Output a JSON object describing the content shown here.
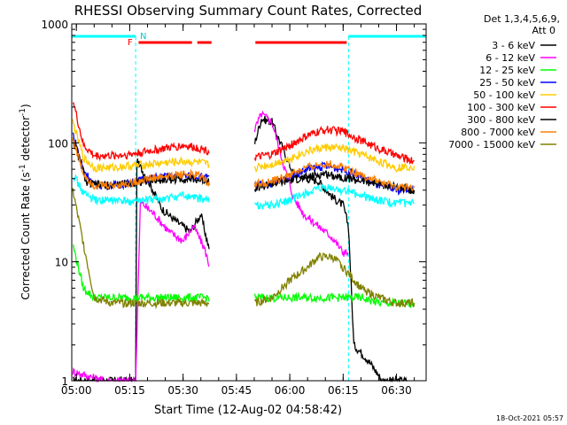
{
  "chart_data": {
    "type": "line",
    "title": "RHESSI Observing Summary Count Rates, Corrected",
    "xlabel": "Start Time (12-Aug-02 04:58:42)",
    "ylabel": "Corrected Count Rate (s",
    "ylabel_sup1": "-1",
    "ylabel_mid": " detector",
    "ylabel_sup2": "-1",
    "ylabel_end": ")",
    "y_scale": "log",
    "ylim": [
      1,
      1000
    ],
    "xlim": [
      "04:58:42",
      "06:38:20"
    ],
    "x_ticks": [
      "05:00",
      "05:15",
      "05:30",
      "05:45",
      "06:00",
      "06:15",
      "06:30"
    ],
    "y_ticks": [
      "1",
      "10",
      "100",
      "1000"
    ],
    "legend_header": [
      "Det 1,3,4,5,6,9,",
      "Att 0"
    ],
    "legend_position": "right",
    "timestamp": "18-Oct-2021 05:57",
    "markers": {
      "flare_label": "F",
      "night_label": "N",
      "flare_color": "#ff0000",
      "night_color": "#00ffff",
      "night_times": [
        "04:58:42",
        "05:16:40",
        "06:16:30",
        "06:38:20"
      ],
      "flare_intervals": [
        [
          "05:17:30",
          "05:32:30"
        ],
        [
          "05:34:00",
          "05:38:00"
        ],
        [
          "05:50:20",
          "06:16:00"
        ]
      ],
      "data_gap": [
        "05:38:30",
        "05:50:00"
      ]
    },
    "series": [
      {
        "name": "3 - 6 keV",
        "color": "#000000",
        "x": [
          "04:59:00",
          "05:05:00",
          "05:10:00",
          "05:15:00",
          "05:16:40",
          "05:17:00",
          "05:20:00",
          "05:24:00",
          "05:28:00",
          "05:32:00",
          "05:35:00",
          "05:37:30",
          "05:50:10",
          "05:52:00",
          "05:55:00",
          "05:58:00",
          "06:01:00",
          "06:05:00",
          "06:08:00",
          "06:12:00",
          "06:15:00",
          "06:16:30",
          "06:18:00",
          "06:22:00",
          "06:26:00",
          "06:30:00",
          "06:33:00"
        ],
        "values": [
          1,
          1,
          1,
          1,
          1,
          70,
          50,
          28,
          22,
          18,
          25,
          12,
          100,
          160,
          150,
          90,
          55,
          50,
          48,
          35,
          30,
          20,
          2,
          1.5,
          1,
          1,
          1
        ]
      },
      {
        "name": "6 - 12 keV",
        "color": "#ff00ff",
        "x": [
          "04:59:00",
          "05:03:00",
          "05:08:00",
          "05:15:00",
          "05:16:40",
          "05:18:00",
          "05:22:00",
          "05:26:00",
          "05:30:00",
          "05:33:00",
          "05:36:00",
          "05:37:30",
          "05:50:10",
          "05:52:00",
          "05:55:00",
          "05:58:00",
          "06:01:00",
          "06:04:00",
          "06:08:00",
          "06:12:00",
          "06:15:00",
          "06:16:20"
        ],
        "values": [
          1.2,
          1.1,
          1,
          1,
          1,
          32,
          25,
          18,
          15,
          20,
          13,
          9,
          130,
          175,
          150,
          70,
          35,
          25,
          20,
          16,
          12,
          12
        ]
      },
      {
        "name": "12 - 25 keV",
        "color": "#00ff00",
        "x": [
          "04:59:00",
          "05:02:00",
          "05:05:00",
          "05:15:00",
          "05:25:00",
          "05:37:30",
          "05:50:10",
          "05:55:00",
          "06:00:00",
          "06:05:00",
          "06:10:00",
          "06:15:00",
          "06:20:00",
          "06:25:00",
          "06:30:00",
          "06:35:00"
        ],
        "values": [
          14,
          6,
          5,
          5,
          5,
          5,
          5,
          5,
          5,
          5,
          5,
          5,
          5,
          4.5,
          4.5,
          4.5
        ]
      },
      {
        "name": "25 - 50 keV",
        "color": "#0000ff",
        "x": [
          "04:59:00",
          "05:02:00",
          "05:05:00",
          "05:10:00",
          "05:15:00",
          "05:20:00",
          "05:25:00",
          "05:30:00",
          "05:35:00",
          "05:37:30",
          "05:50:10",
          "05:55:00",
          "06:00:00",
          "06:05:00",
          "06:10:00",
          "06:15:00",
          "06:20:00",
          "06:25:00",
          "06:30:00",
          "06:35:00"
        ],
        "values": [
          120,
          60,
          44,
          44,
          46,
          50,
          52,
          53,
          52,
          50,
          44,
          46,
          52,
          60,
          64,
          60,
          52,
          44,
          40,
          42
        ]
      },
      {
        "name": "50 - 100 keV",
        "color": "#ffcc00",
        "x": [
          "04:59:00",
          "05:02:00",
          "05:05:00",
          "05:10:00",
          "05:15:00",
          "05:20:00",
          "05:25:00",
          "05:30:00",
          "05:35:00",
          "05:37:30",
          "05:50:10",
          "05:55:00",
          "06:00:00",
          "06:05:00",
          "06:10:00",
          "06:15:00",
          "06:20:00",
          "06:25:00",
          "06:30:00",
          "06:35:00"
        ],
        "values": [
          150,
          75,
          62,
          62,
          64,
          66,
          68,
          70,
          68,
          65,
          62,
          66,
          74,
          85,
          92,
          90,
          80,
          70,
          62,
          64
        ]
      },
      {
        "name": "100 - 300 keV",
        "color": "#ff0000",
        "x": [
          "04:59:00",
          "05:02:00",
          "05:05:00",
          "05:10:00",
          "05:15:00",
          "05:20:00",
          "05:25:00",
          "05:30:00",
          "05:35:00",
          "05:37:30",
          "05:50:10",
          "05:55:00",
          "06:00:00",
          "06:05:00",
          "06:10:00",
          "06:15:00",
          "06:20:00",
          "06:25:00",
          "06:30:00",
          "06:35:00"
        ],
        "values": [
          230,
          95,
          78,
          78,
          80,
          85,
          90,
          95,
          90,
          85,
          75,
          80,
          95,
          115,
          130,
          125,
          105,
          90,
          78,
          70
        ]
      },
      {
        "name": "300 - 800 keV",
        "color": "#000000",
        "x": [
          "04:59:00",
          "05:03:00",
          "05:10:00",
          "05:20:00",
          "05:30:00",
          "05:37:30",
          "05:50:10",
          "06:00:00",
          "06:10:00",
          "06:20:00",
          "06:35:00"
        ],
        "values": [
          110,
          45,
          44,
          48,
          50,
          48,
          42,
          48,
          55,
          48,
          40
        ]
      },
      {
        "name": "800 - 7000 keV",
        "color": "#ff8000",
        "x": [
          "04:59:00",
          "05:02:00",
          "05:05:00",
          "05:10:00",
          "05:15:00",
          "05:20:00",
          "05:25:00",
          "05:30:00",
          "05:35:00",
          "05:37:30",
          "05:50:10",
          "05:55:00",
          "06:00:00",
          "06:05:00",
          "06:10:00",
          "06:15:00",
          "06:20:00",
          "06:25:00",
          "06:30:00",
          "06:35:00"
        ],
        "values": [
          110,
          55,
          44,
          44,
          46,
          50,
          52,
          55,
          53,
          45,
          45,
          47,
          54,
          62,
          67,
          63,
          54,
          47,
          42,
          43
        ]
      },
      {
        "name": "7000 - 15000 keV",
        "color": "#808000",
        "x": [
          "04:59:00",
          "05:01:00",
          "05:03:00",
          "05:05:00",
          "05:10:00",
          "05:20:00",
          "05:30:00",
          "05:37:30",
          "05:50:10",
          "05:55:00",
          "06:00:00",
          "06:05:00",
          "06:08:00",
          "06:12:00",
          "06:15:00",
          "06:20:00",
          "06:25:00",
          "06:30:00",
          "06:35:00"
        ],
        "values": [
          40,
          20,
          10,
          5,
          4.5,
          4.5,
          4.5,
          4.5,
          4.5,
          5,
          7,
          9,
          11,
          11,
          9,
          6,
          5,
          4.5,
          4.5
        ]
      },
      {
        "name": "",
        "color": "#00ffff",
        "x": [
          "04:59:00",
          "05:02:00",
          "05:05:00",
          "05:10:00",
          "05:15:00",
          "05:20:00",
          "05:25:00",
          "05:30:00",
          "05:35:00",
          "05:37:30",
          "05:50:10",
          "05:55:00",
          "06:00:00",
          "06:05:00",
          "06:10:00",
          "06:15:00",
          "06:20:00",
          "06:25:00",
          "06:30:00",
          "06:35:00"
        ],
        "values": [
          55,
          38,
          33,
          33,
          32,
          33,
          34,
          36,
          34,
          33,
          30,
          30,
          33,
          38,
          42,
          40,
          36,
          33,
          31,
          31
        ]
      }
    ]
  }
}
